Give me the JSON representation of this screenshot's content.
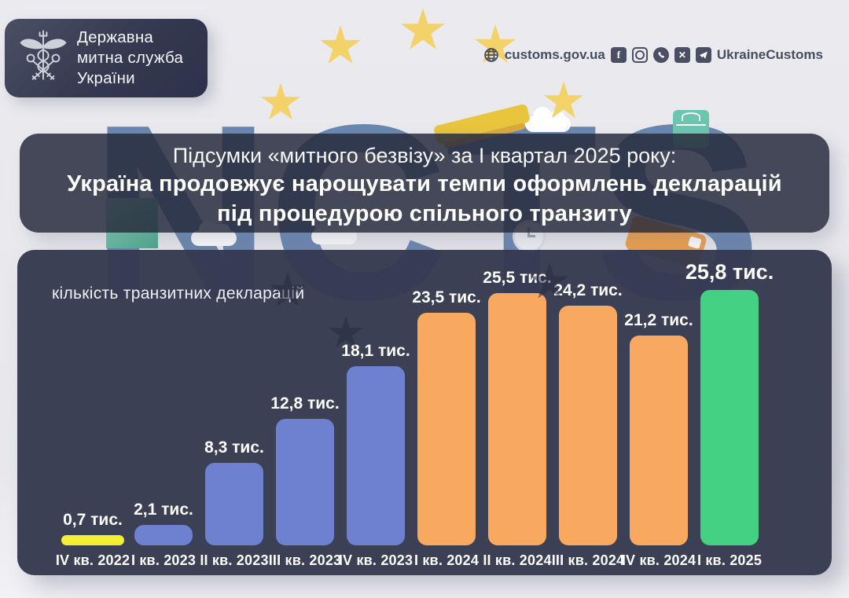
{
  "header": {
    "logo": {
      "line1": "Державна",
      "line2": "митна служба",
      "line3": "України"
    },
    "website": "customs.gov.ua",
    "social_handle": "UkraineCustoms",
    "social_icons": [
      "globe-icon",
      "facebook-icon",
      "instagram-icon",
      "viber-icon",
      "x-icon",
      "telegram-icon"
    ]
  },
  "title": {
    "line1": "Підсумки «митного безвізу» за І квартал 2025 року:",
    "line2": "Україна продовжує нарощувати темпи оформлень декларацій",
    "line3": "під процедурою спільного транзиту"
  },
  "watermark": "NCTS",
  "chart_data": {
    "type": "bar",
    "title": "кількість транзитних декларацій",
    "unit": "тис.",
    "categories": [
      "IV кв. 2022",
      "І кв. 2023",
      "ІІ кв. 2023",
      "ІІІ кв. 2023",
      "IV кв. 2023",
      "І кв. 2024",
      "ІІ кв. 2024",
      "ІІІ кв. 2024",
      "IV кв. 2024",
      "І кв. 2025"
    ],
    "values": [
      0.7,
      2.1,
      8.3,
      12.8,
      18.1,
      23.5,
      25.5,
      24.2,
      21.2,
      25.8
    ],
    "value_labels": [
      "0,7 тис.",
      "2,1 тис.",
      "8,3 тис.",
      "12,8 тис.",
      "18,1 тис.",
      "23,5 тис.",
      "25,5 тис.",
      "24,2 тис.",
      "21,2 тис.",
      "25,8 тис."
    ],
    "bar_colors": [
      "#f4ef33",
      "#6d81d0",
      "#6d81d0",
      "#6d81d0",
      "#6d81d0",
      "#f9a85f",
      "#f9a85f",
      "#f9a85f",
      "#f9a85f",
      "#45d184"
    ],
    "year_colors": {
      "2022": "#f4ef33",
      "2023": "#6d81d0",
      "2024": "#f9a85f",
      "2025": "#45d184"
    },
    "highlight_index": 9,
    "ylim": [
      0,
      27
    ],
    "grid": false,
    "legend": "none"
  },
  "style_colors": {
    "background": "#e9e9ed",
    "panel": "#353a50",
    "watermark_blue": "#6080ac",
    "star_gold": "#f2d269",
    "text_dark": "#474c62"
  }
}
